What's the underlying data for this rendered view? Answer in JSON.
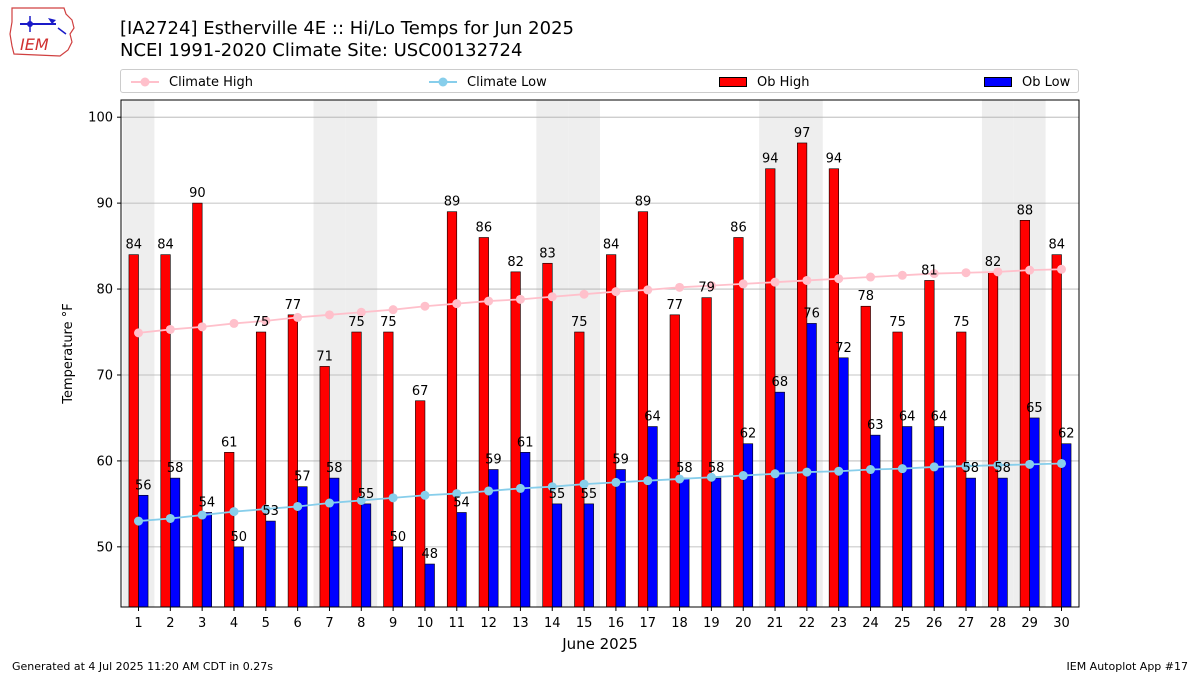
{
  "header": {
    "logo_text": "IEM",
    "title": "[IA2724] Estherville 4E :: Hi/Lo Temps for Jun 2025",
    "subtitle": "NCEI 1991-2020 Climate Site: USC00132724"
  },
  "legend": {
    "climate_high": "Climate High",
    "climate_low": "Climate Low",
    "ob_high": "Ob High",
    "ob_low": "Ob Low"
  },
  "colors": {
    "ob_high": "#ff0000",
    "ob_low": "#0000ff",
    "climate_high": "#ffc0cb",
    "climate_low": "#87ceeb",
    "weekend_shade": "#eeeeee",
    "grid": "#b0b0b0"
  },
  "chart_data": {
    "type": "bar",
    "xlabel": "June 2025",
    "ylabel": "Temperature °F",
    "ylim": [
      43,
      102
    ],
    "yticks": [
      50,
      60,
      70,
      80,
      90,
      100
    ],
    "grid": "horizontal",
    "legend_position": "top",
    "categories": [
      1,
      2,
      3,
      4,
      5,
      6,
      7,
      8,
      9,
      10,
      11,
      12,
      13,
      14,
      15,
      16,
      17,
      18,
      19,
      20,
      21,
      22,
      23,
      24,
      25,
      26,
      27,
      28,
      29,
      30
    ],
    "shaded_days": [
      1,
      7,
      8,
      14,
      15,
      21,
      22,
      28,
      29
    ],
    "series": [
      {
        "name": "Ob High",
        "kind": "bar",
        "values": [
          84,
          84,
          90,
          61,
          75,
          77,
          71,
          75,
          75,
          67,
          89,
          86,
          82,
          83,
          75,
          84,
          89,
          77,
          79,
          86,
          94,
          97,
          94,
          78,
          75,
          81,
          75,
          82,
          88,
          84
        ]
      },
      {
        "name": "Ob Low",
        "kind": "bar",
        "values": [
          56,
          58,
          54,
          50,
          53,
          57,
          58,
          55,
          50,
          48,
          54,
          59,
          61,
          55,
          55,
          59,
          64,
          58,
          58,
          62,
          68,
          76,
          72,
          63,
          64,
          64,
          58,
          58,
          65,
          62
        ]
      },
      {
        "name": "Climate High",
        "kind": "line",
        "values": [
          74.9,
          75.3,
          75.6,
          76.0,
          76.3,
          76.7,
          77.0,
          77.3,
          77.6,
          78.0,
          78.3,
          78.6,
          78.8,
          79.1,
          79.4,
          79.7,
          79.9,
          80.2,
          80.4,
          80.6,
          80.8,
          81.0,
          81.2,
          81.4,
          81.6,
          81.8,
          81.9,
          82.0,
          82.2,
          82.3
        ]
      },
      {
        "name": "Climate Low",
        "kind": "line",
        "values": [
          53.0,
          53.3,
          53.7,
          54.1,
          54.4,
          54.7,
          55.1,
          55.4,
          55.7,
          56.0,
          56.2,
          56.5,
          56.8,
          57.0,
          57.3,
          57.5,
          57.7,
          57.9,
          58.1,
          58.3,
          58.5,
          58.7,
          58.8,
          59.0,
          59.1,
          59.3,
          59.4,
          59.5,
          59.6,
          59.7
        ]
      }
    ]
  },
  "footer": {
    "left": "Generated at 4 Jul 2025 11:20 AM CDT in 0.27s",
    "right": "IEM Autoplot App #17"
  }
}
